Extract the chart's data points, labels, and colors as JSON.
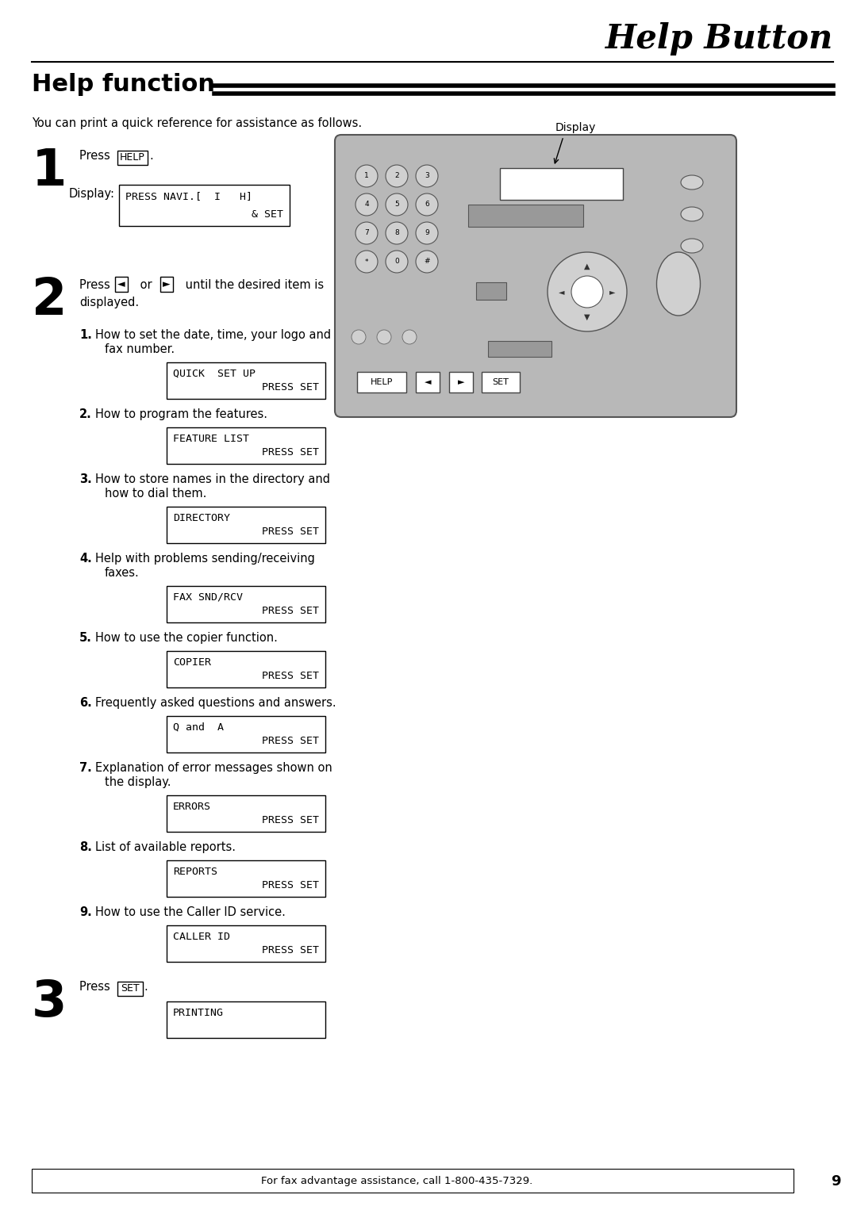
{
  "title": "Help Button",
  "section_title": "Help function",
  "intro_text": "You can print a quick reference for assistance as follows.",
  "bg_color": "#ffffff",
  "text_color": "#000000",
  "step1_key": "HELP",
  "step1_display_label": "Display:",
  "step1_display_line1": "PRESS NAVI.[  I   H]",
  "step1_display_line2": "& SET",
  "display_label": "Display",
  "items": [
    {
      "num": "1.",
      "text": "How to set the date, time, your logo and",
      "text2": "fax number.",
      "box_line1": "QUICK  SET UP",
      "box_line2": "PRESS SET"
    },
    {
      "num": "2.",
      "text": "How to program the features.",
      "text2": "",
      "box_line1": "FEATURE LIST",
      "box_line2": "PRESS SET"
    },
    {
      "num": "3.",
      "text": "How to store names in the directory and",
      "text2": "how to dial them.",
      "box_line1": "DIRECTORY",
      "box_line2": "PRESS SET"
    },
    {
      "num": "4.",
      "text": "Help with problems sending/receiving",
      "text2": "faxes.",
      "box_line1": "FAX SND/RCV",
      "box_line2": "PRESS SET"
    },
    {
      "num": "5.",
      "text": "How to use the copier function.",
      "text2": "",
      "box_line1": "COPIER",
      "box_line2": "PRESS SET"
    },
    {
      "num": "6.",
      "text": "Frequently asked questions and answers.",
      "text2": "",
      "box_line1": "Q and  A",
      "box_line2": "PRESS SET"
    },
    {
      "num": "7.",
      "text": "Explanation of error messages shown on",
      "text2": "the display.",
      "box_line1": "ERRORS",
      "box_line2": "PRESS SET"
    },
    {
      "num": "8.",
      "text": "List of available reports.",
      "text2": "",
      "box_line1": "REPORTS",
      "box_line2": "PRESS SET"
    },
    {
      "num": "9.",
      "text": "How to use the Caller ID service.",
      "text2": "",
      "box_line1": "CALLER ID",
      "box_line2": "PRESS SET"
    }
  ],
  "step3_key": "SET",
  "step3_box": "PRINTING",
  "footer_text": "For fax advantage assistance, call 1-800-435-7329.",
  "page_num": "9",
  "machine_color": "#b8b8b8",
  "machine_dark": "#999999",
  "machine_light": "#d0d0d0"
}
